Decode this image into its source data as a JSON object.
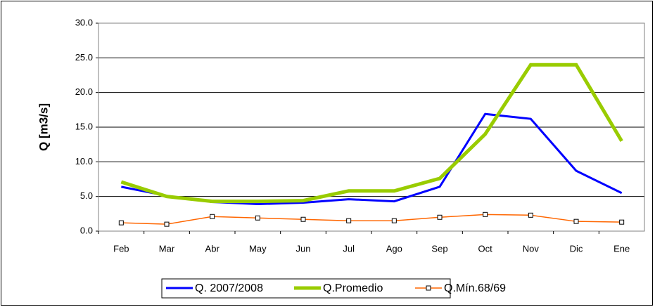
{
  "chart_data": {
    "type": "line",
    "ylabel": "Q [m3/s]",
    "categories": [
      "Feb",
      "Mar",
      "Abr",
      "May",
      "Jun",
      "Jul",
      "Ago",
      "Sep",
      "Oct",
      "Nov",
      "Dic",
      "Ene"
    ],
    "series": [
      {
        "name": "Q. 2007/2008",
        "color": "#0000ff",
        "values": [
          6.4,
          5.1,
          4.2,
          3.9,
          4.1,
          4.6,
          4.3,
          6.4,
          16.9,
          16.2,
          8.7,
          5.5
        ]
      },
      {
        "name": "Q.Promedio",
        "color": "#99cc00",
        "values": [
          7.1,
          5.0,
          4.3,
          4.3,
          4.4,
          5.8,
          5.8,
          7.6,
          14.0,
          24.0,
          24.0,
          13.0
        ]
      },
      {
        "name": "Q.Mín.68/69",
        "color": "#ff6600",
        "values": [
          1.2,
          1.0,
          2.1,
          1.9,
          1.7,
          1.5,
          1.5,
          2.0,
          2.4,
          2.3,
          1.4,
          1.3
        ]
      }
    ],
    "ylim": [
      0,
      30
    ],
    "yticks": [
      {
        "value": 0,
        "label": "0.0"
      },
      {
        "value": 5,
        "label": "5.0"
      },
      {
        "value": 10,
        "label": "10.0"
      },
      {
        "value": 15,
        "label": "15.0"
      },
      {
        "value": 20,
        "label": "20.0"
      },
      {
        "value": 25,
        "label": "25.0"
      },
      {
        "value": 30,
        "label": "30.0"
      }
    ],
    "grid": true,
    "legend": "bottom"
  }
}
